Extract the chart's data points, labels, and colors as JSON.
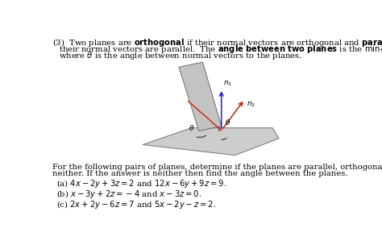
{
  "bg_color": "#ffffff",
  "fig_width": 4.74,
  "fig_height": 3.09,
  "dpi": 100,
  "text_color": "#000000",
  "plane_color": "#c8c8c8",
  "plane_edge": "#555555",
  "arrow_blue": "#1a1aff",
  "arrow_red": "#cc2200",
  "arrow_dark": "#555555",
  "part_a": "(a) $4x - 2y + 3z = 2$ and $12x - 6y + 9z = 9$.",
  "part_b": "(b) $x - 3y + 2z = -4$ and $x - 3z = 0$.",
  "part_c": "(c) $2x + 2y - 6z = 7$ and $5x - 2y - z = 2$."
}
